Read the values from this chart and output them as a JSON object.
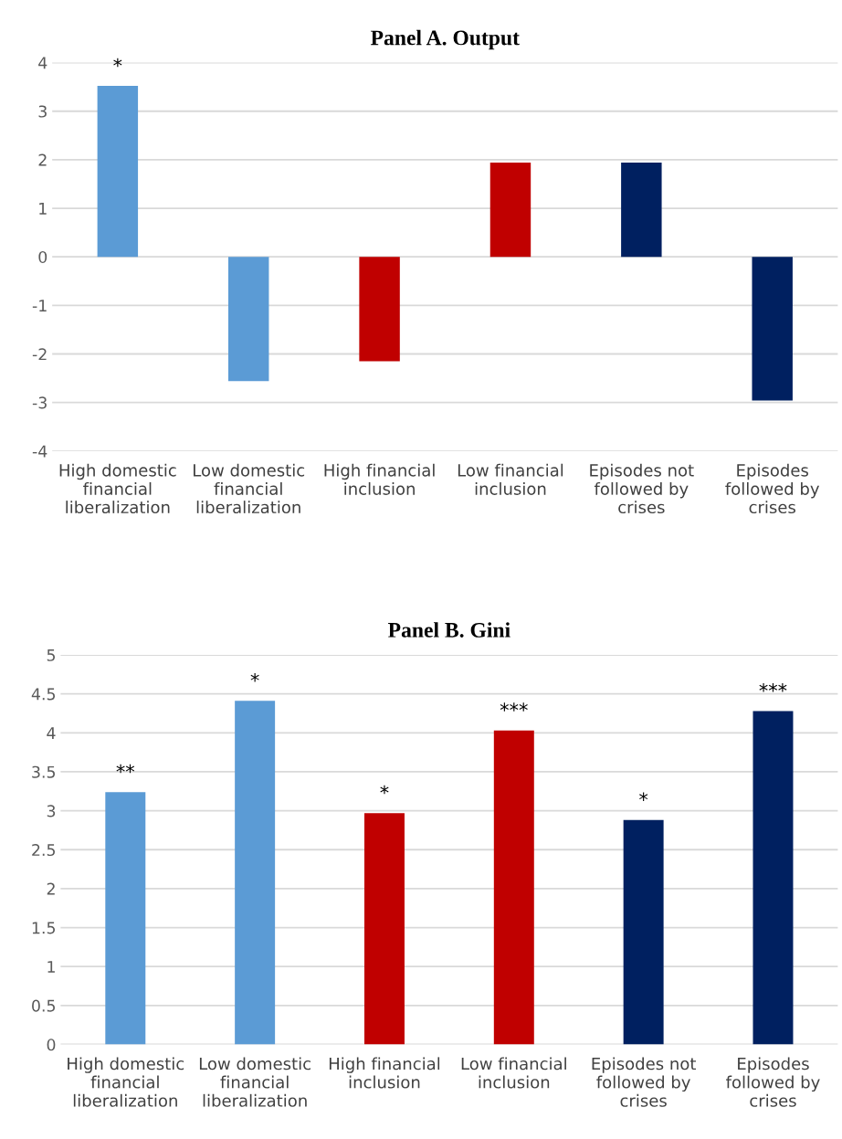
{
  "chart_data": [
    {
      "type": "bar",
      "title": "Panel A. Output",
      "categories": [
        "High domestic\nfinancial\nliberalization",
        "Low domestic\nfinancial\nliberalization",
        "High financial\ninclusion",
        "Low financial\ninclusion",
        "Episodes not\nfollowed by\ncrises",
        "Episodes\nfollowed by\ncrises"
      ],
      "values": [
        3.52,
        -2.56,
        -2.15,
        1.94,
        1.94,
        -2.96
      ],
      "colors": [
        "#5b9bd5",
        "#5b9bd5",
        "#c00000",
        "#c00000",
        "#002060",
        "#002060"
      ],
      "ylim": [
        -4,
        4
      ],
      "yticks": [
        -4,
        -3,
        -2,
        -1,
        0,
        1,
        2,
        3,
        4
      ],
      "grid": "y",
      "legend": false,
      "annotations": [
        {
          "text": "*",
          "x": "High domestic\nfinancial\nliberalization",
          "y": 3.52
        }
      ]
    },
    {
      "type": "bar",
      "title": "Panel B. Gini",
      "categories": [
        "High domestic\nfinancial\nliberalization",
        "Low domestic\nfinancial\nliberalization",
        "High financial\ninclusion",
        "Low financial\ninclusion",
        "Episodes not\nfollowed by\ncrises",
        "Episodes\nfollowed by\ncrises"
      ],
      "values": [
        3.24,
        4.41,
        2.97,
        4.03,
        2.88,
        4.28
      ],
      "colors": [
        "#5b9bd5",
        "#5b9bd5",
        "#c00000",
        "#c00000",
        "#002060",
        "#002060"
      ],
      "ylim": [
        0,
        5
      ],
      "yticks": [
        0,
        0.5,
        1,
        1.5,
        2,
        2.5,
        3,
        3.5,
        4,
        4.5,
        5
      ],
      "grid": "y",
      "legend": false,
      "annotations": [
        {
          "text": "**",
          "x": "High domestic\nfinancial\nliberalization",
          "y": 3.24
        },
        {
          "text": "*",
          "x": "Low domestic\nfinancial\nliberalization",
          "y": 4.41
        },
        {
          "text": "*",
          "x": "High financial\ninclusion",
          "y": 2.97
        },
        {
          "text": "***",
          "x": "Low financial\ninclusion",
          "y": 4.03
        },
        {
          "text": "*",
          "x": "Episodes not\nfollowed by\ncrises",
          "y": 2.88
        },
        {
          "text": "***",
          "x": "Episodes\nfollowed by\ncrises",
          "y": 4.28
        }
      ]
    }
  ]
}
